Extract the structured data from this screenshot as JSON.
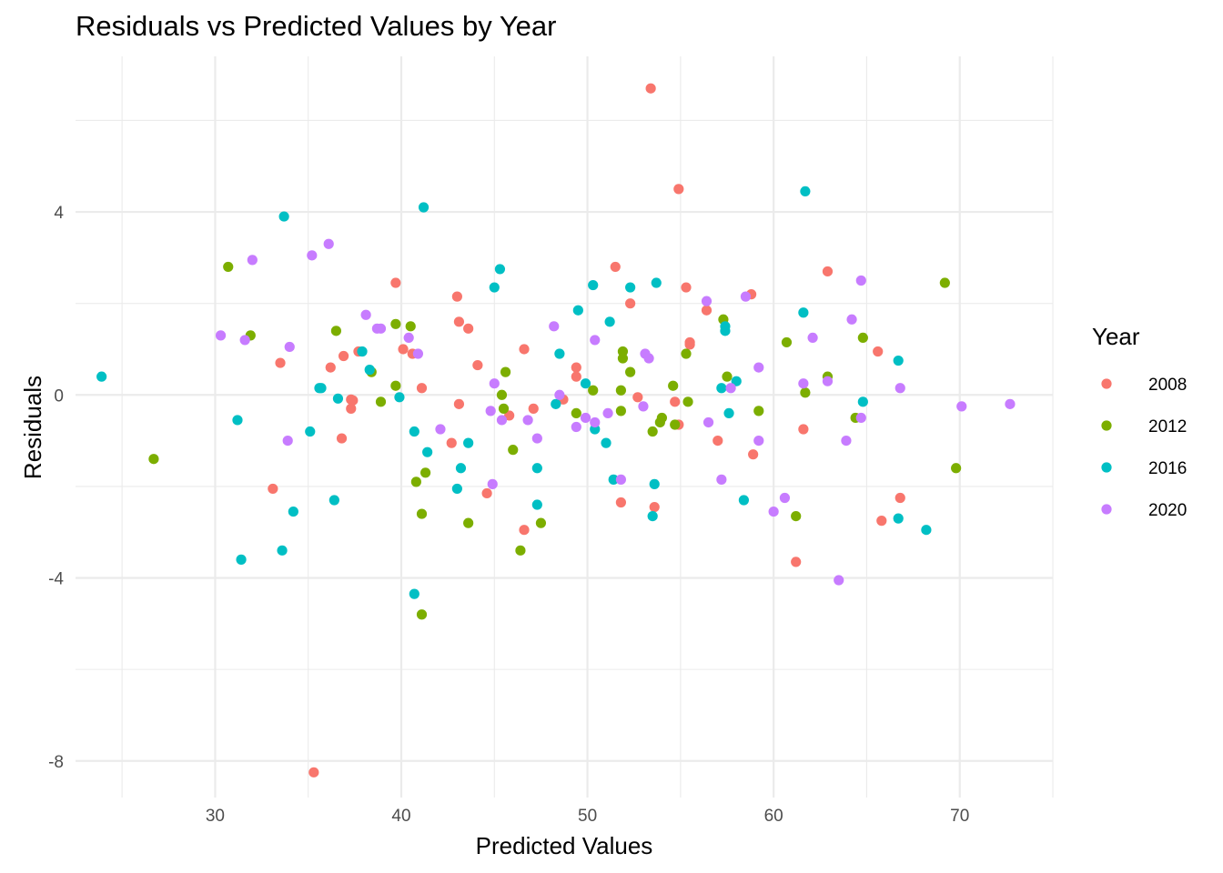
{
  "chart_data": {
    "type": "scatter",
    "title": "Residuals vs Predicted Values by Year",
    "xlabel": "Predicted Values",
    "ylabel": "Residuals",
    "xlim": [
      22.5,
      75
    ],
    "ylim": [
      -8.8,
      7.4
    ],
    "x_ticks": [
      30,
      40,
      50,
      60,
      70
    ],
    "y_ticks": [
      -8,
      -4,
      0,
      4
    ],
    "grid": true,
    "legend": {
      "title": "Year",
      "placement": "right"
    },
    "series": [
      {
        "name": "2008",
        "color": "#F8766D",
        "points": [
          [
            53.4,
            6.7
          ],
          [
            54.9,
            4.5
          ],
          [
            51.5,
            2.8
          ],
          [
            62.9,
            2.7
          ],
          [
            39.7,
            2.45
          ],
          [
            55.3,
            2.35
          ],
          [
            58.8,
            2.2
          ],
          [
            43.0,
            2.15
          ],
          [
            52.3,
            2.0
          ],
          [
            56.4,
            1.85
          ],
          [
            43.1,
            1.6
          ],
          [
            43.6,
            1.45
          ],
          [
            55.5,
            1.15
          ],
          [
            55.5,
            1.1
          ],
          [
            40.1,
            1.0
          ],
          [
            46.6,
            1.0
          ],
          [
            65.6,
            0.95
          ],
          [
            37.7,
            0.95
          ],
          [
            40.6,
            0.9
          ],
          [
            36.9,
            0.85
          ],
          [
            33.5,
            0.7
          ],
          [
            44.1,
            0.65
          ],
          [
            36.2,
            0.6
          ],
          [
            49.4,
            0.6
          ],
          [
            49.4,
            0.4
          ],
          [
            41.1,
            0.15
          ],
          [
            52.7,
            -0.05
          ],
          [
            37.3,
            -0.1
          ],
          [
            37.4,
            -0.12
          ],
          [
            48.7,
            -0.1
          ],
          [
            54.7,
            -0.15
          ],
          [
            43.1,
            -0.2
          ],
          [
            37.3,
            -0.3
          ],
          [
            47.1,
            -0.3
          ],
          [
            45.8,
            -0.45
          ],
          [
            54.9,
            -0.65
          ],
          [
            61.6,
            -0.75
          ],
          [
            36.8,
            -0.95
          ],
          [
            57.0,
            -1.0
          ],
          [
            42.7,
            -1.05
          ],
          [
            58.9,
            -1.3
          ],
          [
            33.1,
            -2.05
          ],
          [
            44.6,
            -2.15
          ],
          [
            66.8,
            -2.25
          ],
          [
            51.8,
            -2.35
          ],
          [
            53.6,
            -2.45
          ],
          [
            65.8,
            -2.75
          ],
          [
            46.6,
            -2.95
          ],
          [
            61.2,
            -3.65
          ],
          [
            35.3,
            -8.25
          ]
        ]
      },
      {
        "name": "2012",
        "color": "#7CAE00",
        "points": [
          [
            69.2,
            2.45
          ],
          [
            30.7,
            2.8
          ],
          [
            39.7,
            1.55
          ],
          [
            57.3,
            1.65
          ],
          [
            40.5,
            1.5
          ],
          [
            36.5,
            1.4
          ],
          [
            31.9,
            1.3
          ],
          [
            64.8,
            1.25
          ],
          [
            60.7,
            1.15
          ],
          [
            51.9,
            0.95
          ],
          [
            55.3,
            0.9
          ],
          [
            51.9,
            0.8
          ],
          [
            45.6,
            0.5
          ],
          [
            38.4,
            0.5
          ],
          [
            52.3,
            0.5
          ],
          [
            57.5,
            0.4
          ],
          [
            62.9,
            0.4
          ],
          [
            39.7,
            0.2
          ],
          [
            54.6,
            0.2
          ],
          [
            50.3,
            0.1
          ],
          [
            51.8,
            0.1
          ],
          [
            61.7,
            0.05
          ],
          [
            45.4,
            0.0
          ],
          [
            38.9,
            -0.15
          ],
          [
            55.4,
            -0.15
          ],
          [
            45.5,
            -0.3
          ],
          [
            51.8,
            -0.35
          ],
          [
            59.2,
            -0.35
          ],
          [
            49.4,
            -0.4
          ],
          [
            54.0,
            -0.5
          ],
          [
            64.4,
            -0.5
          ],
          [
            53.9,
            -0.6
          ],
          [
            54.7,
            -0.65
          ],
          [
            53.5,
            -0.8
          ],
          [
            46.0,
            -1.2
          ],
          [
            26.7,
            -1.4
          ],
          [
            69.8,
            -1.6
          ],
          [
            41.3,
            -1.7
          ],
          [
            40.8,
            -1.9
          ],
          [
            41.1,
            -2.6
          ],
          [
            61.2,
            -2.65
          ],
          [
            43.6,
            -2.8
          ],
          [
            47.5,
            -2.8
          ],
          [
            46.4,
            -3.4
          ],
          [
            41.1,
            -4.8
          ]
        ]
      },
      {
        "name": "2016",
        "color": "#00BFC4",
        "points": [
          [
            61.7,
            4.45
          ],
          [
            41.2,
            4.1
          ],
          [
            33.7,
            3.9
          ],
          [
            45.3,
            2.75
          ],
          [
            53.7,
            2.45
          ],
          [
            50.3,
            2.4
          ],
          [
            52.3,
            2.35
          ],
          [
            45.0,
            2.35
          ],
          [
            49.5,
            1.85
          ],
          [
            61.6,
            1.8
          ],
          [
            51.2,
            1.6
          ],
          [
            57.4,
            1.5
          ],
          [
            57.4,
            1.4
          ],
          [
            37.9,
            0.95
          ],
          [
            48.5,
            0.9
          ],
          [
            66.7,
            0.75
          ],
          [
            38.3,
            0.55
          ],
          [
            23.9,
            0.4
          ],
          [
            58.0,
            0.3
          ],
          [
            49.9,
            0.25
          ],
          [
            35.6,
            0.15
          ],
          [
            35.7,
            0.15
          ],
          [
            57.2,
            0.15
          ],
          [
            39.9,
            -0.05
          ],
          [
            36.6,
            -0.08
          ],
          [
            64.8,
            -0.15
          ],
          [
            48.3,
            -0.2
          ],
          [
            57.6,
            -0.4
          ],
          [
            31.2,
            -0.55
          ],
          [
            50.4,
            -0.75
          ],
          [
            35.1,
            -0.8
          ],
          [
            40.7,
            -0.8
          ],
          [
            43.6,
            -1.05
          ],
          [
            51.0,
            -1.05
          ],
          [
            41.4,
            -1.25
          ],
          [
            43.2,
            -1.6
          ],
          [
            47.3,
            -1.6
          ],
          [
            51.4,
            -1.85
          ],
          [
            53.6,
            -1.95
          ],
          [
            43.0,
            -2.05
          ],
          [
            36.4,
            -2.3
          ],
          [
            58.4,
            -2.3
          ],
          [
            47.3,
            -2.4
          ],
          [
            34.2,
            -2.55
          ],
          [
            53.5,
            -2.65
          ],
          [
            66.7,
            -2.7
          ],
          [
            68.2,
            -2.95
          ],
          [
            33.6,
            -3.4
          ],
          [
            31.4,
            -3.6
          ],
          [
            40.7,
            -4.35
          ]
        ]
      },
      {
        "name": "2020",
        "color": "#C77CFF",
        "points": [
          [
            36.1,
            3.3
          ],
          [
            35.2,
            3.05
          ],
          [
            32.0,
            2.95
          ],
          [
            64.7,
            2.5
          ],
          [
            58.5,
            2.15
          ],
          [
            56.4,
            2.05
          ],
          [
            38.1,
            1.75
          ],
          [
            64.2,
            1.65
          ],
          [
            48.2,
            1.5
          ],
          [
            38.7,
            1.45
          ],
          [
            38.9,
            1.45
          ],
          [
            30.3,
            1.3
          ],
          [
            40.4,
            1.25
          ],
          [
            62.1,
            1.25
          ],
          [
            31.6,
            1.2
          ],
          [
            50.4,
            1.2
          ],
          [
            34.0,
            1.05
          ],
          [
            40.9,
            0.9
          ],
          [
            53.1,
            0.9
          ],
          [
            53.3,
            0.8
          ],
          [
            59.2,
            0.6
          ],
          [
            61.6,
            0.25
          ],
          [
            62.9,
            0.3
          ],
          [
            45.0,
            0.25
          ],
          [
            57.7,
            0.15
          ],
          [
            66.8,
            0.15
          ],
          [
            48.5,
            0.0
          ],
          [
            53.0,
            -0.25
          ],
          [
            70.1,
            -0.25
          ],
          [
            72.7,
            -0.2
          ],
          [
            44.8,
            -0.35
          ],
          [
            51.1,
            -0.4
          ],
          [
            49.9,
            -0.5
          ],
          [
            45.4,
            -0.55
          ],
          [
            46.8,
            -0.55
          ],
          [
            64.7,
            -0.5
          ],
          [
            50.4,
            -0.6
          ],
          [
            56.5,
            -0.6
          ],
          [
            49.4,
            -0.7
          ],
          [
            42.1,
            -0.75
          ],
          [
            47.3,
            -0.95
          ],
          [
            33.9,
            -1.0
          ],
          [
            63.9,
            -1.0
          ],
          [
            59.2,
            -1.0
          ],
          [
            51.8,
            -1.85
          ],
          [
            57.2,
            -1.85
          ],
          [
            44.9,
            -1.95
          ],
          [
            60.6,
            -2.25
          ],
          [
            60.0,
            -2.55
          ],
          [
            63.5,
            -4.05
          ]
        ]
      }
    ]
  }
}
